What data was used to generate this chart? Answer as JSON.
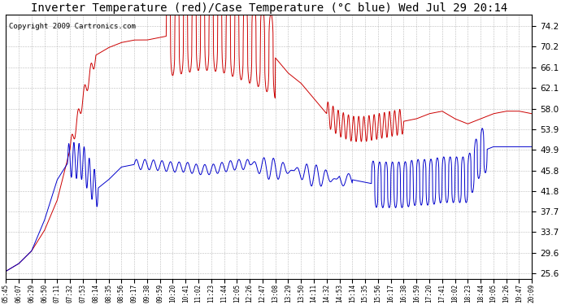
{
  "title": "Inverter Temperature (red)/Case Temperature (°C blue) Wed Jul 29 20:14",
  "copyright": "Copyright 2009 Cartronics.com",
  "yticks": [
    25.6,
    29.6,
    33.7,
    37.7,
    41.8,
    45.8,
    49.9,
    53.9,
    58.0,
    62.1,
    66.1,
    70.2,
    74.2
  ],
  "ylim": [
    24.5,
    76.5
  ],
  "xtick_labels": [
    "05:45",
    "06:07",
    "06:29",
    "06:50",
    "07:11",
    "07:32",
    "07:53",
    "08:14",
    "08:35",
    "08:56",
    "09:17",
    "09:38",
    "09:59",
    "10:20",
    "10:41",
    "11:02",
    "11:23",
    "11:44",
    "12:05",
    "12:26",
    "12:47",
    "13:08",
    "13:29",
    "13:50",
    "14:11",
    "14:32",
    "14:53",
    "15:14",
    "15:35",
    "15:56",
    "16:17",
    "16:38",
    "16:59",
    "17:20",
    "17:41",
    "18:02",
    "18:23",
    "18:44",
    "19:05",
    "19:26",
    "19:47",
    "20:09"
  ],
  "red_color": "#cc0000",
  "blue_color": "#0000cc",
  "bg_color": "#ffffff",
  "grid_color": "#aaaaaa",
  "title_fontsize": 10,
  "copyright_fontsize": 6.5
}
